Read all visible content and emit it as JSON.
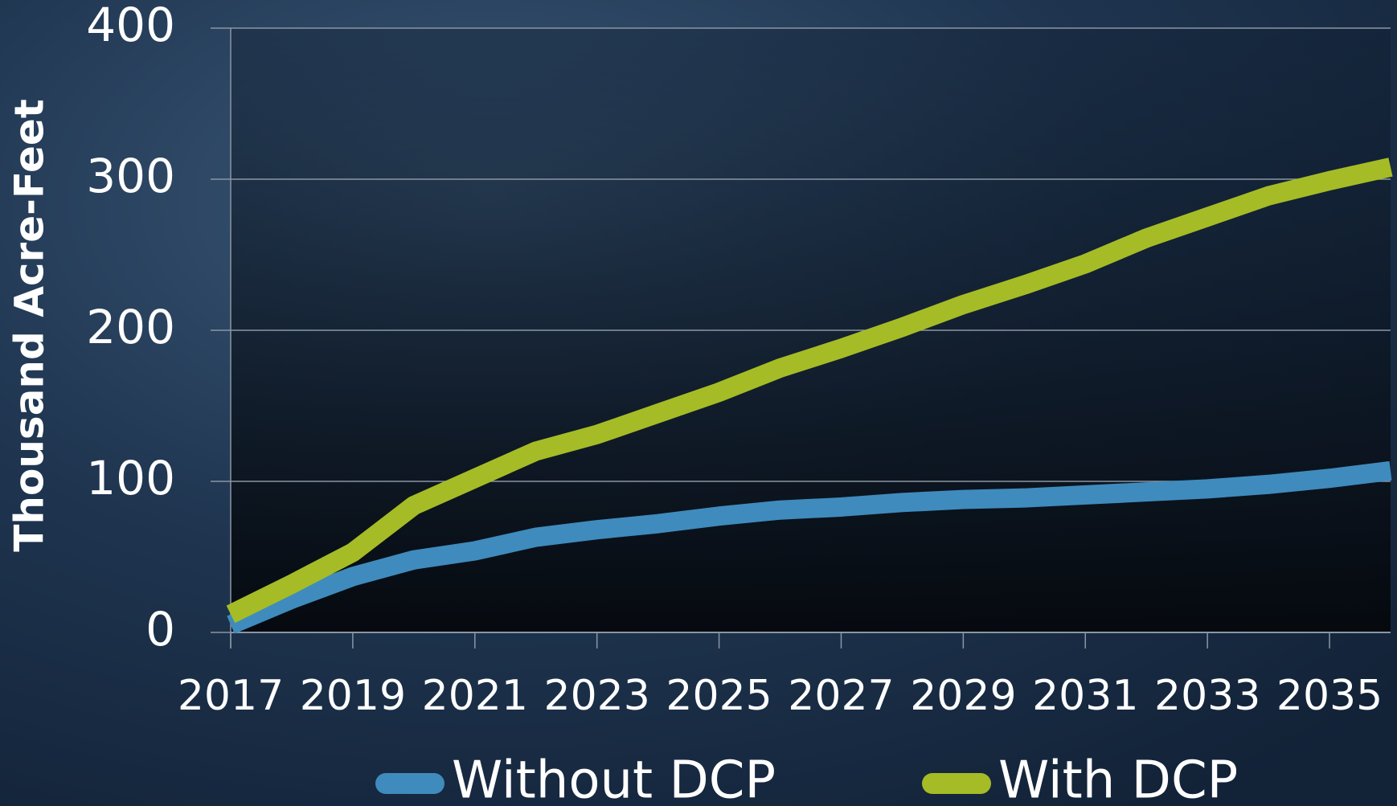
{
  "chart_data": {
    "type": "line",
    "y_label": "Thousand Acre-Feet",
    "x": [
      2017,
      2018,
      2019,
      2020,
      2021,
      2022,
      2023,
      2024,
      2025,
      2026,
      2027,
      2028,
      2029,
      2030,
      2031,
      2032,
      2033,
      2034,
      2035,
      2036
    ],
    "series": [
      {
        "name": "Without DCP",
        "color": "#3f8bbd",
        "values": [
          5,
          22,
          37,
          48,
          54,
          63,
          68,
          72,
          77,
          81,
          83,
          86,
          88,
          89,
          91,
          93,
          95,
          98,
          102,
          107
        ]
      },
      {
        "name": "With DCP",
        "color": "#a5bc26",
        "values": [
          12,
          32,
          53,
          84,
          102,
          120,
          131,
          145,
          159,
          175,
          188,
          202,
          217,
          230,
          244,
          261,
          275,
          289,
          299,
          308
        ]
      }
    ],
    "xlim": [
      2017,
      2036
    ],
    "xticks": [
      2017,
      2019,
      2021,
      2023,
      2025,
      2027,
      2029,
      2031,
      2033,
      2035
    ],
    "ylim": [
      0,
      400
    ],
    "yticks": [
      0,
      100,
      200,
      300,
      400
    ],
    "grid": true,
    "legend": "bottom"
  }
}
